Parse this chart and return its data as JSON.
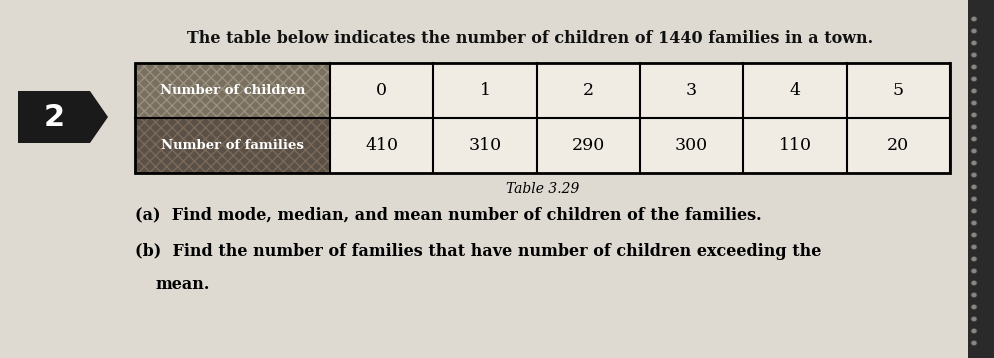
{
  "title": "The table below indicates the number of children of 1440 families in a town.",
  "table_caption": "Table 3.29",
  "row1_header": "Number of children",
  "row2_header": "Number of families",
  "row1_data": [
    "0",
    "1",
    "2",
    "3",
    "4",
    "5"
  ],
  "row2_data": [
    "410",
    "310",
    "290",
    "300",
    "110",
    "20"
  ],
  "question_a": "(a)  Find mode, median, and mean number of children of the families.",
  "question_b": "(b)  Find the number of families that have number of children exceeding the",
  "question_b2": "       mean.",
  "number_label": "2",
  "page_bg": "#dedad2",
  "header_bg1": "#7a7060",
  "header_bg2": "#6a6050",
  "text_color": "#111111"
}
